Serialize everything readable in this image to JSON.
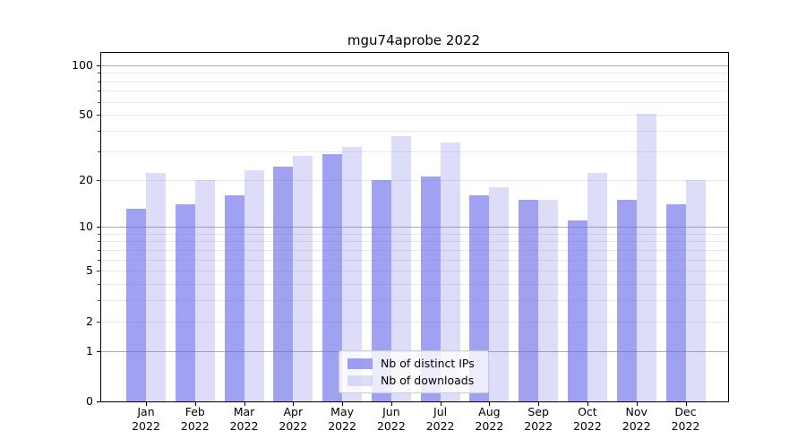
{
  "chart_data": {
    "type": "bar",
    "title": "mgu74aprobe 2022",
    "categories": [
      "Jan",
      "Feb",
      "Mar",
      "Apr",
      "May",
      "Jun",
      "Jul",
      "Aug",
      "Sep",
      "Oct",
      "Nov",
      "Dec"
    ],
    "x_year_label": "2022",
    "series": [
      {
        "name": "Nb of distinct IPs",
        "color": "rgba(99,102,232,0.61)",
        "values": [
          13,
          14,
          16,
          24,
          29,
          20,
          21,
          16,
          15,
          11,
          15,
          14
        ]
      },
      {
        "name": "Nb of downloads",
        "color": "rgba(99,102,232,0.22)",
        "values": [
          22,
          20,
          23,
          28,
          32,
          37,
          34,
          18,
          15,
          22,
          51,
          20
        ]
      }
    ],
    "yticks": [
      0,
      1,
      2,
      5,
      10,
      20,
      50,
      100
    ],
    "major_gridlines": [
      1,
      10,
      100
    ],
    "minor_gridlines": [
      2,
      3,
      4,
      5,
      6,
      7,
      8,
      9,
      20,
      30,
      40,
      50,
      60,
      70,
      80,
      90
    ],
    "scale": "log1p",
    "ylim": [
      0,
      120
    ],
    "grid": true,
    "legend_position": "lower center",
    "xlabel": "",
    "ylabel": ""
  }
}
